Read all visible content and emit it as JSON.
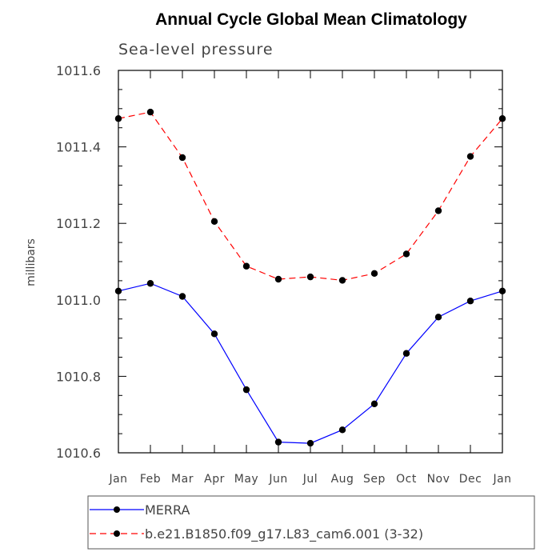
{
  "chart_data": {
    "type": "line",
    "title": "Annual Cycle Global Mean Climatology",
    "subtitle": "Sea-level pressure",
    "xlabel": "",
    "ylabel": "millibars",
    "categories": [
      "Jan",
      "Feb",
      "Mar",
      "Apr",
      "May",
      "Jun",
      "Jul",
      "Aug",
      "Sep",
      "Oct",
      "Nov",
      "Dec",
      "Jan"
    ],
    "ylim": [
      1010.6,
      1011.6
    ],
    "yticks": [
      "1010.6",
      "1010.8",
      "1011.0",
      "1011.2",
      "1011.4",
      "1011.6"
    ],
    "yticks_values": [
      1010.6,
      1010.8,
      1011.0,
      1011.2,
      1011.4,
      1011.6
    ],
    "grid": false,
    "legend_position": "bottom",
    "series": [
      {
        "name": "MERRA",
        "color": "#0000ff",
        "style": "solid",
        "marker": "circle",
        "values": [
          1011.023,
          1011.043,
          1011.009,
          1010.911,
          1010.765,
          1010.628,
          1010.625,
          1010.66,
          1010.728,
          1010.86,
          1010.955,
          1010.997,
          1011.023
        ]
      },
      {
        "name": "b.e21.B1850.f09_g17.L83_cam6.001 (3-32)",
        "color": "#ff0000",
        "style": "dashed",
        "marker": "circle",
        "values": [
          1011.474,
          1011.491,
          1011.372,
          1011.205,
          1011.088,
          1011.054,
          1011.06,
          1011.051,
          1011.069,
          1011.12,
          1011.233,
          1011.375,
          1011.474
        ]
      }
    ]
  }
}
